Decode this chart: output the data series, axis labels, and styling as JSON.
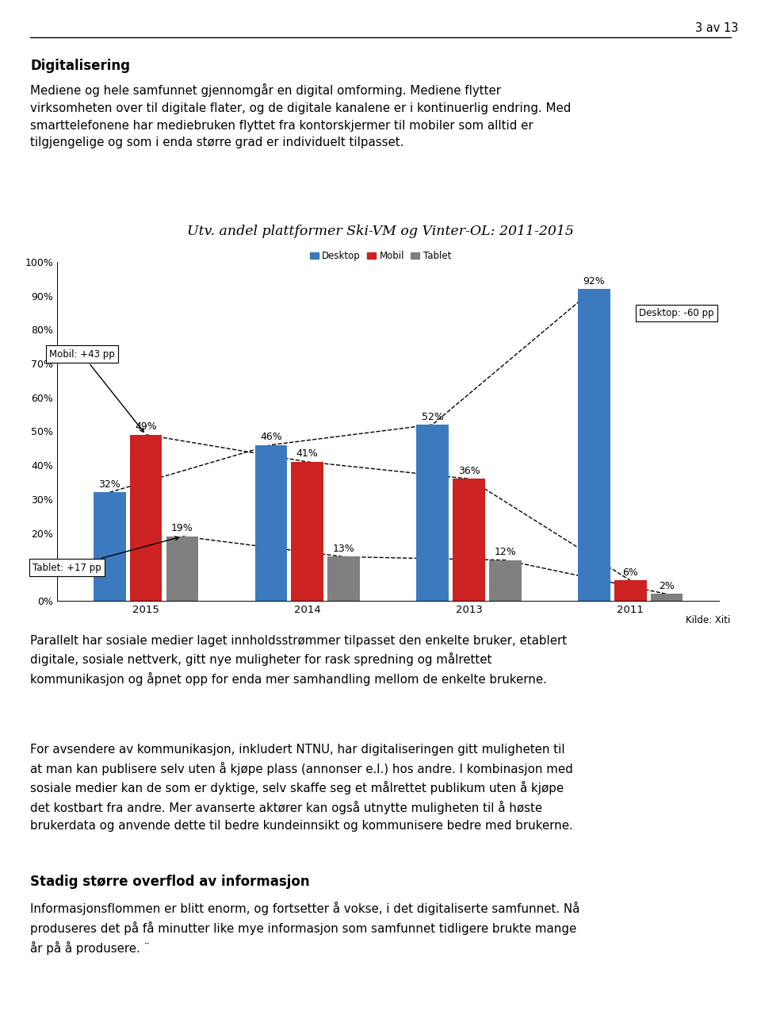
{
  "page_number": "3 av 13",
  "section_title": "Digitalisering",
  "section_text": "Mediene og hele samfunnet gjennomgår en digital omforming. Mediene flytter\nvirksomheten over til digitale flater, og de digitale kanalene er i kontinuerlig endring. Med\nsmarttelefonene har mediebruken flyttet fra kontorskjermer til mobiler som alltid er\ntilgjengelige og som i enda større grad er individuelt tilpasset.",
  "chart_title": "Utv. andel plattformer Ski-VM og Vinter-OL: 2011-2015",
  "legend_labels": [
    "Desktop",
    "Mobil",
    "Tablet"
  ],
  "legend_colors": [
    "#3B7ABF",
    "#CC2222",
    "#808080"
  ],
  "categories": [
    "2015",
    "2014",
    "2013",
    "2011"
  ],
  "desktop": [
    32,
    46,
    52,
    92
  ],
  "mobil": [
    49,
    41,
    36,
    6
  ],
  "tablet": [
    19,
    13,
    12,
    2
  ],
  "bar_color_desktop": "#3B7ABF",
  "bar_color_mobil": "#CC2222",
  "bar_color_tablet": "#808080",
  "ylim": [
    0,
    100
  ],
  "yticks": [
    0,
    10,
    20,
    30,
    40,
    50,
    60,
    70,
    80,
    90,
    100
  ],
  "ytick_labels": [
    "0%",
    "10%",
    "20%",
    "30%",
    "40%",
    "50%",
    "60%",
    "70%",
    "80%",
    "90%",
    "100%"
  ],
  "annot_mobil": "Mobil: +43 pp",
  "annot_tablet": "Tablet: +17 pp",
  "annot_desktop": "Desktop: -60 pp",
  "source_label": "Kilde: Xiti",
  "para1": "Parallelt har sosiale medier laget innholdsstrømmer tilpasset den enkelte bruker, etablert\ndigitale, sosiale nettverk, gitt nye muligheter for rask spredning og målrettet\nkommunikasjon og åpnet opp for enda mer samhandling mellom de enkelte brukerne.",
  "para2": "For avsendere av kommunikasjon, inkludert NTNU, har digitaliseringen gitt muligheten til\nat man kan publisere selv uten å kjøpe plass (annonser e.l.) hos andre. I kombinasjon med\nsosiale medier kan de som er dyktige, selv skaffe seg et målrettet publikum uten å kjøpe\ndet kostbart fra andre. Mer avanserte aktører kan også utnytte muligheten til å høste\nbrukerdata og anvende dette til bedre kundeinnsikt og kommunisere bedre med brukerne.",
  "section2_title": "Stadig større overflod av informasjon",
  "section2_text": "Informasjonsflommen er blitt enorm, og fortsetter å vokse, i det digitaliserte samfunnet. Nå\nproduseres det på få minutter like mye informasjon som samfunnet tidligere brukte mange\når på å produsere. ¨"
}
